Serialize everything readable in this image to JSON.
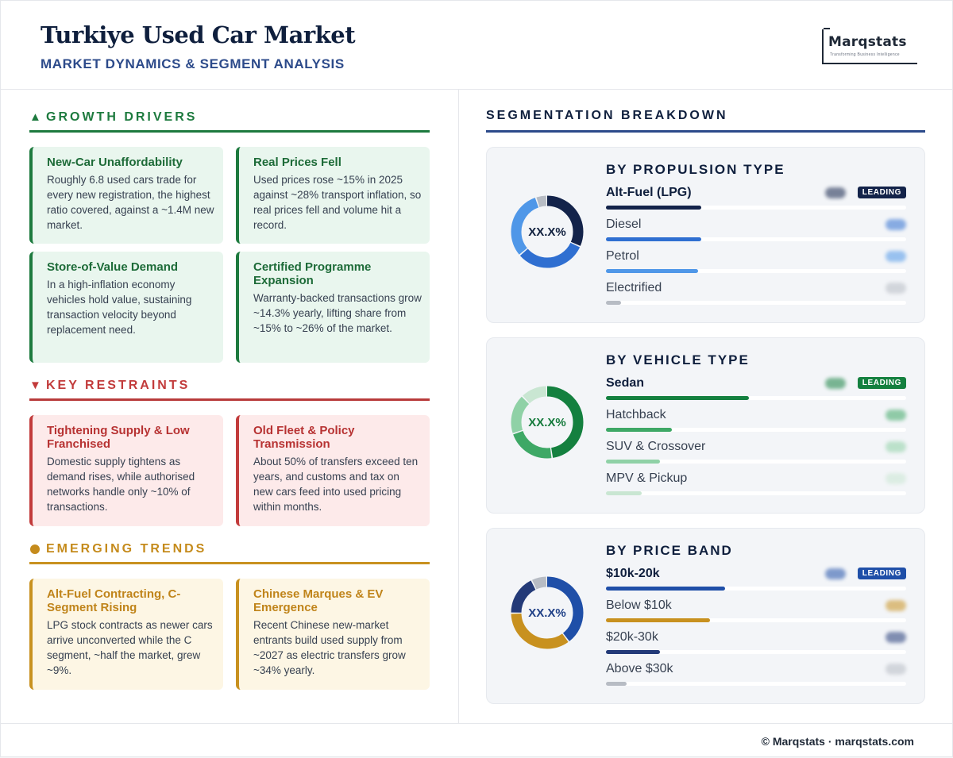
{
  "header": {
    "title": "Turkiye Used Car Market",
    "subtitle": "MARKET DYNAMICS & SEGMENT ANALYSIS",
    "logo_name": "Marqstats",
    "logo_tagline": "Transforming Business Intelligence"
  },
  "left": {
    "growth": {
      "symbol": "▲",
      "label": "GROWTH DRIVERS",
      "cards": [
        {
          "title": "New-Car Unaffordability",
          "body": "Roughly 6.8 used cars trade for every new registration, the highest ratio covered, against a ~1.4M new market."
        },
        {
          "title": "Real Prices Fell",
          "body": "Used prices rose ~15% in 2025 against ~28% transport inflation, so real prices fell and volume hit a record."
        },
        {
          "title": "Store-of-Value Demand",
          "body": "In a high-inflation economy vehicles hold value, sustaining transaction velocity beyond replacement need."
        },
        {
          "title": "Certified Programme Expansion",
          "body": "Warranty-backed transactions grow ~14.3% yearly, lifting share from ~15% to ~26% of the market."
        }
      ]
    },
    "restraints": {
      "symbol": "▼",
      "label": "KEY RESTRAINTS",
      "cards": [
        {
          "title": "Tightening Supply & Low Franchised",
          "body": "Domestic supply tightens as demand rises, while authorised networks handle only ~10% of transactions."
        },
        {
          "title": "Old Fleet & Policy Transmission",
          "body": "About 50% of transfers exceed ten years, and customs and tax on new cars feed into used pricing within months."
        }
      ]
    },
    "trends": {
      "label": "EMERGING TRENDS",
      "cards": [
        {
          "title": "Alt-Fuel Contracting, C-Segment Rising",
          "body": "LPG stock contracts as newer cars arrive unconverted while the C segment, ~half the market, grew ~9%."
        },
        {
          "title": "Chinese Marques & EV Emergence",
          "body": "Recent Chinese new-market entrants build used supply from ~2027 as electric transfers grow ~34% yearly."
        }
      ]
    }
  },
  "right": {
    "heading": "SEGMENTATION BREAKDOWN",
    "leading_label": "LEADING",
    "panels": [
      {
        "title": "BY PROPULSION TYPE",
        "center_label": "XX.X%",
        "center_color": "#0f1f3d",
        "rows": [
          {
            "name": "Alt-Fuel (LPG)",
            "share": 0.32,
            "color": "#13234a"
          },
          {
            "name": "Diesel",
            "share": 0.32,
            "color": "#2f6fd1"
          },
          {
            "name": "Petrol",
            "share": 0.31,
            "color": "#4f97e8"
          },
          {
            "name": "Electrified",
            "share": 0.05,
            "color": "#b7bcc4"
          }
        ]
      },
      {
        "title": "BY VEHICLE TYPE",
        "center_label": "XX.X%",
        "center_color": "#157a3c",
        "rows": [
          {
            "name": "Sedan",
            "share": 0.48,
            "color": "#14803f"
          },
          {
            "name": "Hatchback",
            "share": 0.22,
            "color": "#3ea866"
          },
          {
            "name": "SUV & Crossover",
            "share": 0.18,
            "color": "#8fd1a6"
          },
          {
            "name": "MPV & Pickup",
            "share": 0.12,
            "color": "#c9e6d2"
          }
        ]
      },
      {
        "title": "BY PRICE BAND",
        "center_label": "XX.X%",
        "center_color": "#1e3f86",
        "rows": [
          {
            "name": "$10k-20k",
            "share": 0.4,
            "color": "#1f4fa8"
          },
          {
            "name": "Below $10k",
            "share": 0.35,
            "color": "#c8911f"
          },
          {
            "name": "$20k-30k",
            "share": 0.18,
            "color": "#233a78"
          },
          {
            "name": "Above $30k",
            "share": 0.07,
            "color": "#b7bcc4"
          }
        ]
      }
    ]
  },
  "footer": {
    "text": "© Marqstats · marqstats.com"
  }
}
